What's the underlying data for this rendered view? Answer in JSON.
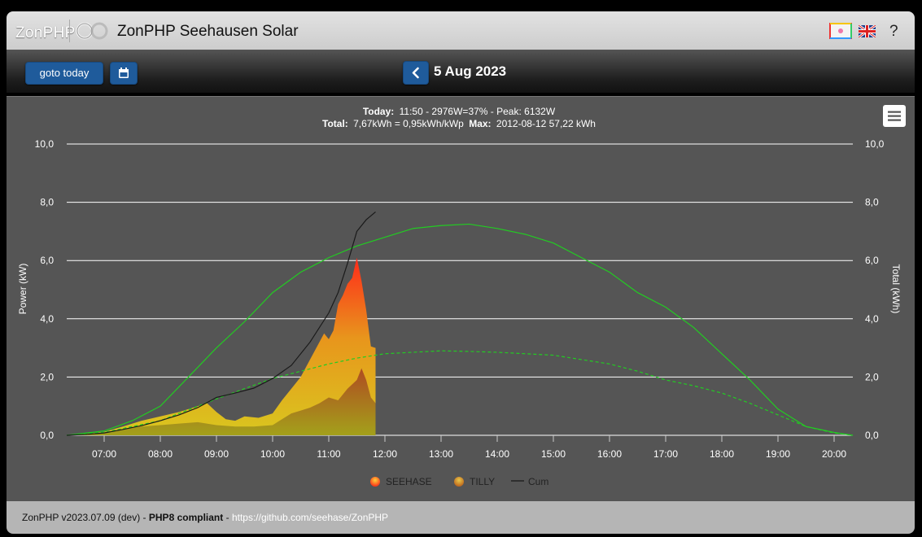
{
  "header": {
    "logo": "ZonPHP",
    "title": "ZonPHP Seehausen Solar",
    "help": "?",
    "icons": [
      "theme-icon",
      "uk-flag-icon"
    ]
  },
  "toolbar": {
    "goto_today_label": "goto today",
    "calendar_icon": "calendar-icon",
    "prev_icon": "chevron-left-icon",
    "date": "5 Aug 2023"
  },
  "chart_info": {
    "line1_label": "Today:",
    "line1_value": "11:50 - 2976W=37% - Peak: 6132W",
    "line2_label": "Total:",
    "line2_value": "7,67kWh = 0,95kWh/kWp",
    "line2_max_label": "Max:",
    "line2_max_value": "2012-08-12 57,22 kWh"
  },
  "chart_data": {
    "type": "area",
    "title": "",
    "left_axis": {
      "label": "Power (kW)",
      "ylim": [
        0,
        10
      ],
      "ticks": [
        "0,0",
        "2,0",
        "4,0",
        "6,0",
        "8,0",
        "10,0"
      ]
    },
    "right_axis": {
      "label": "Total (kWh)",
      "ylim": [
        0,
        10
      ],
      "ticks": [
        "0,0",
        "2,0",
        "4,0",
        "6,0",
        "8,0",
        "10,0"
      ]
    },
    "x_ticks": [
      "07:00",
      "08:00",
      "09:00",
      "10:00",
      "11:00",
      "12:00",
      "13:00",
      "14:00",
      "15:00",
      "16:00",
      "17:00",
      "18:00",
      "19:00",
      "20:00"
    ],
    "grid": true,
    "legend_position": "bottom",
    "series": [
      {
        "name": "SEEHASE",
        "x": [
          "06:20",
          "06:40",
          "07:00",
          "07:20",
          "07:40",
          "08:00",
          "08:20",
          "08:40",
          "08:50",
          "09:00",
          "09:10",
          "09:20",
          "09:30",
          "09:45",
          "10:00",
          "10:10",
          "10:20",
          "10:30",
          "10:40",
          "10:50",
          "10:55",
          "11:00",
          "11:05",
          "11:10",
          "11:15",
          "11:20",
          "11:25",
          "11:30",
          "11:35",
          "11:40",
          "11:45",
          "11:50"
        ],
        "y": [
          0.0,
          0.05,
          0.12,
          0.3,
          0.5,
          0.65,
          0.8,
          1.0,
          1.1,
          0.8,
          0.55,
          0.5,
          0.65,
          0.6,
          0.75,
          1.2,
          1.6,
          2.0,
          2.6,
          3.2,
          3.5,
          3.3,
          3.6,
          4.5,
          4.8,
          5.2,
          5.4,
          6.1,
          5.3,
          4.3,
          3.05,
          3.0
        ],
        "color": "#e8551c"
      },
      {
        "name": "TILLY",
        "x": [
          "06:20",
          "06:40",
          "07:00",
          "07:20",
          "07:40",
          "08:00",
          "08:20",
          "08:40",
          "09:00",
          "09:20",
          "09:40",
          "10:00",
          "10:10",
          "10:20",
          "10:30",
          "10:40",
          "10:50",
          "11:00",
          "11:10",
          "11:20",
          "11:30",
          "11:35",
          "11:40",
          "11:45",
          "11:50"
        ],
        "y": [
          0.0,
          0.03,
          0.1,
          0.2,
          0.3,
          0.35,
          0.4,
          0.45,
          0.35,
          0.3,
          0.3,
          0.35,
          0.55,
          0.75,
          0.85,
          0.95,
          1.1,
          1.3,
          1.2,
          1.6,
          1.9,
          2.3,
          1.9,
          1.3,
          1.1
        ],
        "color": "#b8a01a"
      },
      {
        "name": "Cum",
        "x": [
          "06:20",
          "06:40",
          "07:00",
          "07:20",
          "07:40",
          "08:00",
          "08:20",
          "08:40",
          "09:00",
          "09:20",
          "09:40",
          "10:00",
          "10:20",
          "10:40",
          "11:00",
          "11:10",
          "11:20",
          "11:30",
          "11:40",
          "11:50"
        ],
        "y": [
          0.0,
          0.03,
          0.08,
          0.2,
          0.33,
          0.5,
          0.7,
          0.95,
          1.3,
          1.45,
          1.62,
          1.95,
          2.4,
          3.2,
          4.2,
          4.9,
          5.9,
          7.0,
          7.4,
          7.67
        ],
        "color": "#222222"
      },
      {
        "name": "max (solid, green)",
        "x": [
          "06:20",
          "07:00",
          "07:30",
          "08:00",
          "08:30",
          "09:00",
          "09:30",
          "10:00",
          "10:30",
          "11:00",
          "11:30",
          "12:00",
          "12:30",
          "13:00",
          "13:30",
          "14:00",
          "14:30",
          "15:00",
          "15:30",
          "16:00",
          "16:30",
          "17:00",
          "17:30",
          "18:00",
          "18:30",
          "19:00",
          "19:30",
          "20:00",
          "20:20"
        ],
        "y": [
          0.0,
          0.15,
          0.5,
          1.0,
          2.0,
          3.0,
          3.9,
          4.9,
          5.6,
          6.1,
          6.5,
          6.8,
          7.1,
          7.2,
          7.25,
          7.1,
          6.9,
          6.6,
          6.1,
          5.6,
          4.9,
          4.4,
          3.7,
          2.8,
          1.9,
          0.9,
          0.3,
          0.1,
          0.0
        ],
        "color": "#22cc22"
      },
      {
        "name": "max total (dashed, green)",
        "x": [
          "06:20",
          "07:00",
          "08:00",
          "09:00",
          "10:00",
          "11:00",
          "11:30",
          "12:00",
          "12:30",
          "13:00",
          "13:30",
          "14:00",
          "14:30",
          "15:00",
          "15:30",
          "16:00",
          "16:30",
          "17:00",
          "17:30",
          "18:00",
          "18:30",
          "19:00",
          "19:30",
          "20:00",
          "20:20"
        ],
        "y": [
          0.0,
          0.1,
          0.5,
          1.25,
          1.95,
          2.45,
          2.65,
          2.8,
          2.85,
          2.9,
          2.88,
          2.85,
          2.8,
          2.75,
          2.6,
          2.45,
          2.2,
          1.9,
          1.7,
          1.45,
          1.1,
          0.7,
          0.3,
          0.08,
          0.0
        ],
        "color": "#22cc22"
      }
    ],
    "legend": [
      {
        "label": "SEEHASE",
        "color": "#e8551c"
      },
      {
        "label": "TILLY",
        "color": "#b8a01a"
      },
      {
        "label": "Cum",
        "color": "#222222"
      }
    ]
  },
  "footer": {
    "version": "ZonPHP v2023.07.09 (dev)",
    "sep1": " - ",
    "php8": "PHP8 compliant",
    "sep2": " - ",
    "link": "https://github.com/seehase/ZonPHP"
  }
}
